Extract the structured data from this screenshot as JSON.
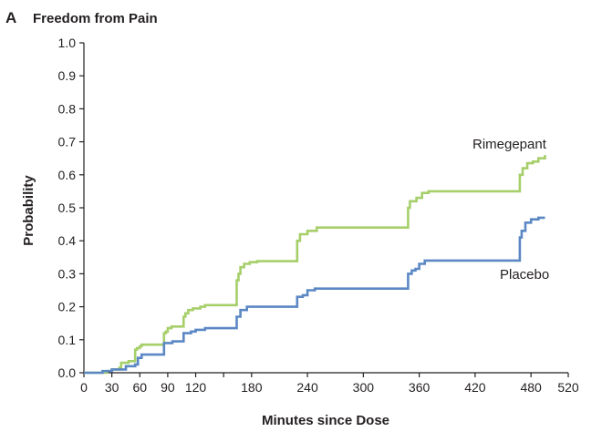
{
  "panel_letter": "A",
  "colors": {
    "rimegepant": "#a6cf6a",
    "placebo": "#5b88c4",
    "axis": "#231f20"
  },
  "chart_data": {
    "type": "line",
    "step": true,
    "title": "Freedom from Pain",
    "xlabel": "Minutes since Dose",
    "ylabel": "Probability",
    "xlim": [
      0,
      520
    ],
    "ylim": [
      0,
      1.0
    ],
    "x_ticks": [
      0,
      30,
      60,
      90,
      120,
      150,
      180,
      240,
      300,
      360,
      420,
      480,
      520
    ],
    "x_tick_labels": [
      "0",
      "30",
      "60",
      "90",
      "120",
      "",
      "180",
      "240",
      "300",
      "360",
      "420",
      "480",
      "520"
    ],
    "y_ticks": [
      0.0,
      0.1,
      0.2,
      0.3,
      0.4,
      0.5,
      0.6,
      0.7,
      0.8,
      0.9,
      1.0
    ],
    "y_tick_labels": [
      "0.0",
      "0.1",
      "0.2",
      "0.3",
      "0.4",
      "0.5",
      "0.6",
      "0.7",
      "0.8",
      "0.9",
      "1.0"
    ],
    "series": [
      {
        "name": "Rimegepant",
        "color": "#a6cf6a",
        "points": [
          [
            0,
            0.0
          ],
          [
            25,
            0.0
          ],
          [
            25,
            0.005
          ],
          [
            30,
            0.01
          ],
          [
            38,
            0.015
          ],
          [
            40,
            0.03
          ],
          [
            48,
            0.035
          ],
          [
            55,
            0.04
          ],
          [
            55,
            0.07
          ],
          [
            57,
            0.075
          ],
          [
            60,
            0.08
          ],
          [
            62,
            0.085
          ],
          [
            86,
            0.085
          ],
          [
            86,
            0.12
          ],
          [
            88,
            0.125
          ],
          [
            90,
            0.135
          ],
          [
            94,
            0.14
          ],
          [
            107,
            0.14
          ],
          [
            107,
            0.17
          ],
          [
            109,
            0.18
          ],
          [
            112,
            0.19
          ],
          [
            117,
            0.195
          ],
          [
            125,
            0.2
          ],
          [
            130,
            0.205
          ],
          [
            145,
            0.205
          ],
          [
            145,
            0.205
          ],
          [
            164,
            0.205
          ],
          [
            164,
            0.28
          ],
          [
            166,
            0.3
          ],
          [
            168,
            0.32
          ],
          [
            172,
            0.33
          ],
          [
            178,
            0.335
          ],
          [
            186,
            0.338
          ],
          [
            229,
            0.338
          ],
          [
            229,
            0.4
          ],
          [
            232,
            0.42
          ],
          [
            240,
            0.43
          ],
          [
            250,
            0.44
          ],
          [
            270,
            0.44
          ],
          [
            348,
            0.44
          ],
          [
            348,
            0.5
          ],
          [
            350,
            0.52
          ],
          [
            357,
            0.53
          ],
          [
            363,
            0.545
          ],
          [
            370,
            0.55
          ],
          [
            380,
            0.55
          ],
          [
            468,
            0.55
          ],
          [
            468,
            0.6
          ],
          [
            471,
            0.62
          ],
          [
            476,
            0.635
          ],
          [
            482,
            0.64
          ],
          [
            488,
            0.65
          ],
          [
            495,
            0.66
          ]
        ]
      },
      {
        "name": "Placebo",
        "color": "#5b88c4",
        "points": [
          [
            0,
            0.0
          ],
          [
            20,
            0.0
          ],
          [
            20,
            0.005
          ],
          [
            30,
            0.01
          ],
          [
            45,
            0.015
          ],
          [
            45,
            0.02
          ],
          [
            55,
            0.025
          ],
          [
            58,
            0.045
          ],
          [
            62,
            0.055
          ],
          [
            86,
            0.055
          ],
          [
            86,
            0.09
          ],
          [
            95,
            0.095
          ],
          [
            107,
            0.095
          ],
          [
            107,
            0.12
          ],
          [
            115,
            0.125
          ],
          [
            120,
            0.13
          ],
          [
            130,
            0.135
          ],
          [
            150,
            0.135
          ],
          [
            164,
            0.135
          ],
          [
            164,
            0.17
          ],
          [
            168,
            0.19
          ],
          [
            175,
            0.2
          ],
          [
            185,
            0.2
          ],
          [
            229,
            0.2
          ],
          [
            229,
            0.23
          ],
          [
            235,
            0.235
          ],
          [
            240,
            0.25
          ],
          [
            248,
            0.255
          ],
          [
            348,
            0.255
          ],
          [
            348,
            0.3
          ],
          [
            352,
            0.31
          ],
          [
            356,
            0.315
          ],
          [
            360,
            0.33
          ],
          [
            366,
            0.34
          ],
          [
            374,
            0.34
          ],
          [
            468,
            0.34
          ],
          [
            468,
            0.41
          ],
          [
            470,
            0.43
          ],
          [
            474,
            0.455
          ],
          [
            480,
            0.465
          ],
          [
            488,
            0.47
          ],
          [
            495,
            0.47
          ]
        ]
      }
    ]
  }
}
